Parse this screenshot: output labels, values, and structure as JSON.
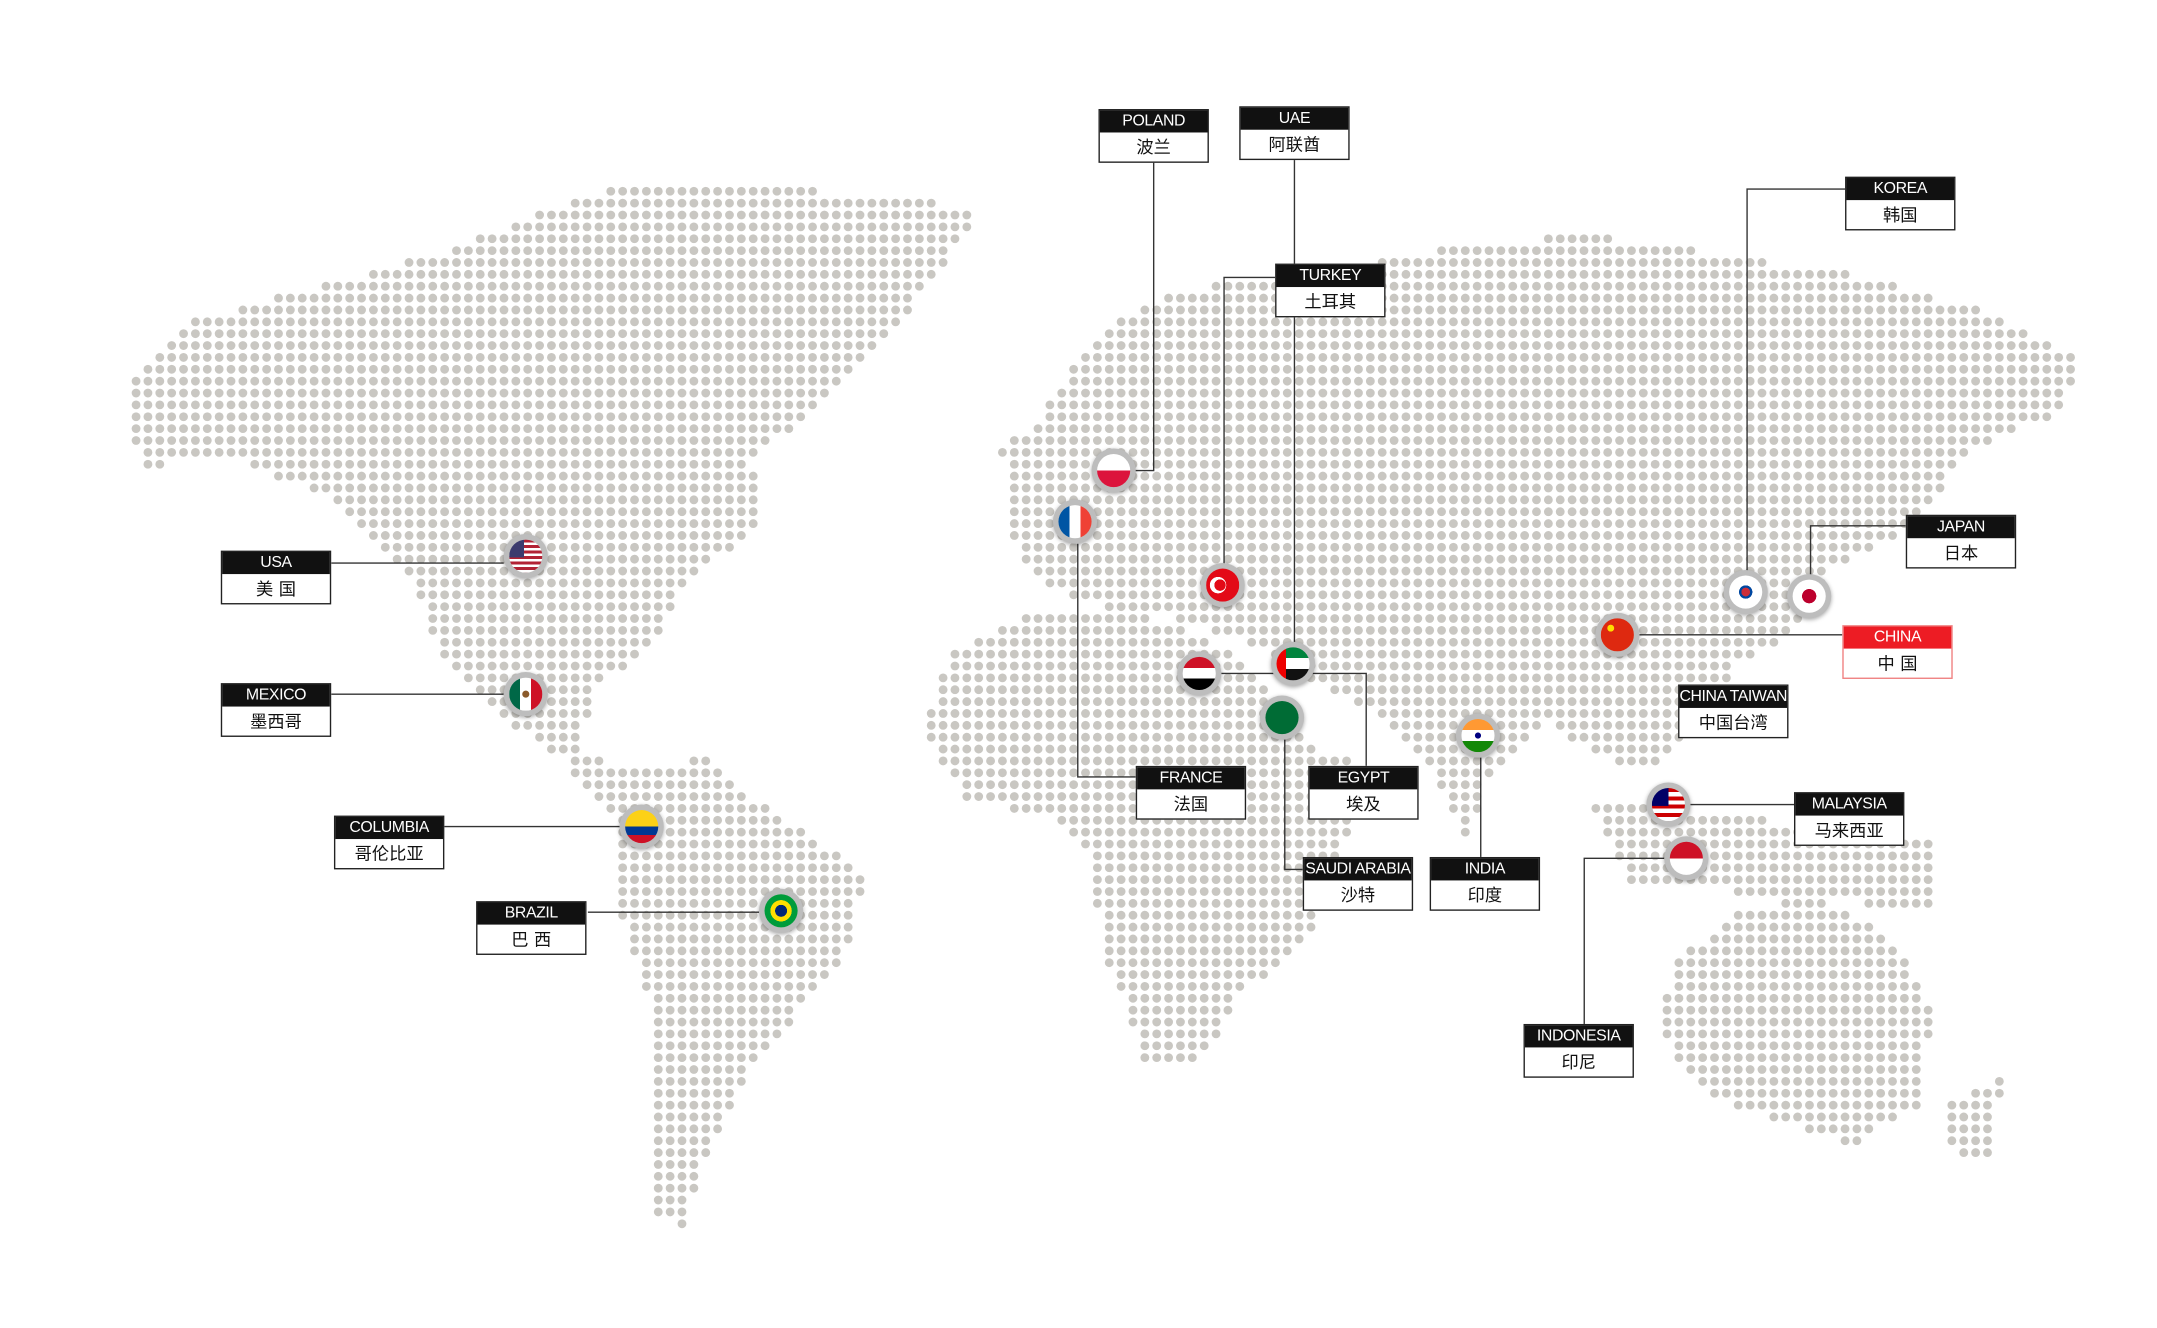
{
  "colors": {
    "dot": "#c9c7c2",
    "label_header": "#111111",
    "highlight": "#ed1c24",
    "line": "#333333"
  },
  "countries": [
    {
      "key": "poland",
      "en": "POLAND",
      "cn": "波兰",
      "flag_icon": "poland-flag-icon"
    },
    {
      "key": "uae",
      "en": "UAE",
      "cn": "阿联酋",
      "flag_icon": "uae-flag-icon"
    },
    {
      "key": "turkey",
      "en": "TURKEY",
      "cn": "土耳其",
      "flag_icon": "turkey-flag-icon"
    },
    {
      "key": "korea",
      "en": "KOREA",
      "cn": "韩国",
      "flag_icon": "korea-flag-icon"
    },
    {
      "key": "japan",
      "en": "JAPAN",
      "cn": "日本",
      "flag_icon": "japan-flag-icon"
    },
    {
      "key": "china",
      "en": "CHINA",
      "cn": "中 国",
      "flag_icon": "china-flag-icon",
      "highlighted": true
    },
    {
      "key": "taiwan",
      "en": "CHINA TAIWAN",
      "cn": "中国台湾"
    },
    {
      "key": "malaysia",
      "en": "MALAYSIA",
      "cn": "马来西亚",
      "flag_icon": "malaysia-flag-icon"
    },
    {
      "key": "indonesia",
      "en": "INDONESIA",
      "cn": "印尼",
      "flag_icon": "indonesia-flag-icon"
    },
    {
      "key": "india",
      "en": "INDIA",
      "cn": "印度",
      "flag_icon": "india-flag-icon"
    },
    {
      "key": "saudi",
      "en": "SAUDI ARABIA",
      "cn": "沙特",
      "flag_icon": "saudi-arabia-flag-icon"
    },
    {
      "key": "egypt",
      "en": "EGYPT",
      "cn": "埃及",
      "flag_icon": "egypt-flag-icon"
    },
    {
      "key": "france",
      "en": "FRANCE",
      "cn": "法国",
      "flag_icon": "france-flag-icon"
    },
    {
      "key": "usa",
      "en": "USA",
      "cn": "美 国",
      "flag_icon": "usa-flag-icon"
    },
    {
      "key": "mexico",
      "en": "MEXICO",
      "cn": "墨西哥",
      "flag_icon": "mexico-flag-icon"
    },
    {
      "key": "columbia",
      "en": "COLUMBIA",
      "cn": "哥伦比亚",
      "flag_icon": "colombia-flag-icon"
    },
    {
      "key": "brazil",
      "en": "BRAZIL",
      "cn": "巴 西",
      "flag_icon": "brazil-flag-icon"
    }
  ]
}
